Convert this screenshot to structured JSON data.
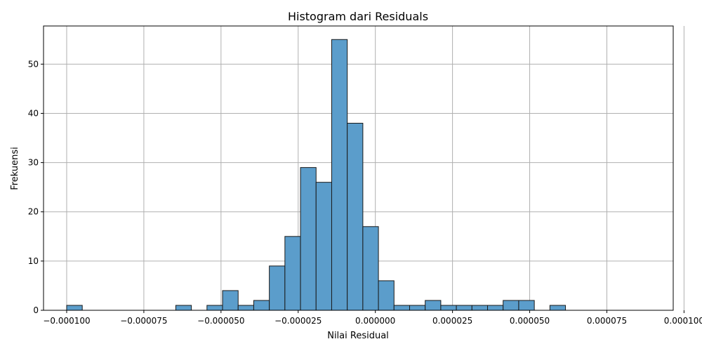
{
  "chart_data": {
    "type": "bar",
    "title": "Histogram dari Residuals",
    "xlabel": "Nilai Residual",
    "ylabel": "Frekuensi",
    "xlim": [
      -0.0001075,
      9.65e-05
    ],
    "ylim": [
      0,
      57.75
    ],
    "grid": true,
    "bar_color": "#5b9dcb",
    "bin_width": 5.05e-06,
    "bins": [
      {
        "start": -0.0001,
        "count": 1
      },
      {
        "start": -9.495e-05,
        "count": 0
      },
      {
        "start": -8.99e-05,
        "count": 0
      },
      {
        "start": -8.485e-05,
        "count": 0
      },
      {
        "start": -7.98e-05,
        "count": 0
      },
      {
        "start": -7.475e-05,
        "count": 0
      },
      {
        "start": -6.97e-05,
        "count": 0
      },
      {
        "start": -6.465e-05,
        "count": 1
      },
      {
        "start": -5.96e-05,
        "count": 0
      },
      {
        "start": -5.455e-05,
        "count": 1
      },
      {
        "start": -4.95e-05,
        "count": 4
      },
      {
        "start": -4.445e-05,
        "count": 1
      },
      {
        "start": -3.94e-05,
        "count": 2
      },
      {
        "start": -3.435e-05,
        "count": 9
      },
      {
        "start": -2.93e-05,
        "count": 15
      },
      {
        "start": -2.425e-05,
        "count": 29
      },
      {
        "start": -1.92e-05,
        "count": 26
      },
      {
        "start": -1.415e-05,
        "count": 55
      },
      {
        "start": -9.1e-06,
        "count": 38
      },
      {
        "start": -4.05e-06,
        "count": 17
      },
      {
        "start": 1e-06,
        "count": 6
      },
      {
        "start": 6.05e-06,
        "count": 1
      },
      {
        "start": 1.11e-05,
        "count": 1
      },
      {
        "start": 1.615e-05,
        "count": 2
      },
      {
        "start": 2.12e-05,
        "count": 1
      },
      {
        "start": 2.625e-05,
        "count": 1
      },
      {
        "start": 3.13e-05,
        "count": 1
      },
      {
        "start": 3.635e-05,
        "count": 1
      },
      {
        "start": 4.14e-05,
        "count": 2
      },
      {
        "start": 4.645e-05,
        "count": 2
      },
      {
        "start": 5.15e-05,
        "count": 0
      },
      {
        "start": 5.655e-05,
        "count": 1
      }
    ],
    "x_ticks": [
      {
        "value": -0.0001,
        "label": "−0.000100"
      },
      {
        "value": -7.5e-05,
        "label": "−0.000075"
      },
      {
        "value": -5e-05,
        "label": "−0.000050"
      },
      {
        "value": -2.5e-05,
        "label": "−0.000025"
      },
      {
        "value": 0,
        "label": "0.000000"
      },
      {
        "value": 2.5e-05,
        "label": "0.000025"
      },
      {
        "value": 5e-05,
        "label": "0.000050"
      },
      {
        "value": 7.5e-05,
        "label": "0.000075"
      },
      {
        "value": 0.0001,
        "label": "0.000100"
      }
    ],
    "y_ticks": [
      {
        "value": 0,
        "label": "0"
      },
      {
        "value": 10,
        "label": "10"
      },
      {
        "value": 20,
        "label": "20"
      },
      {
        "value": 30,
        "label": "30"
      },
      {
        "value": 40,
        "label": "40"
      },
      {
        "value": 50,
        "label": "50"
      }
    ]
  }
}
